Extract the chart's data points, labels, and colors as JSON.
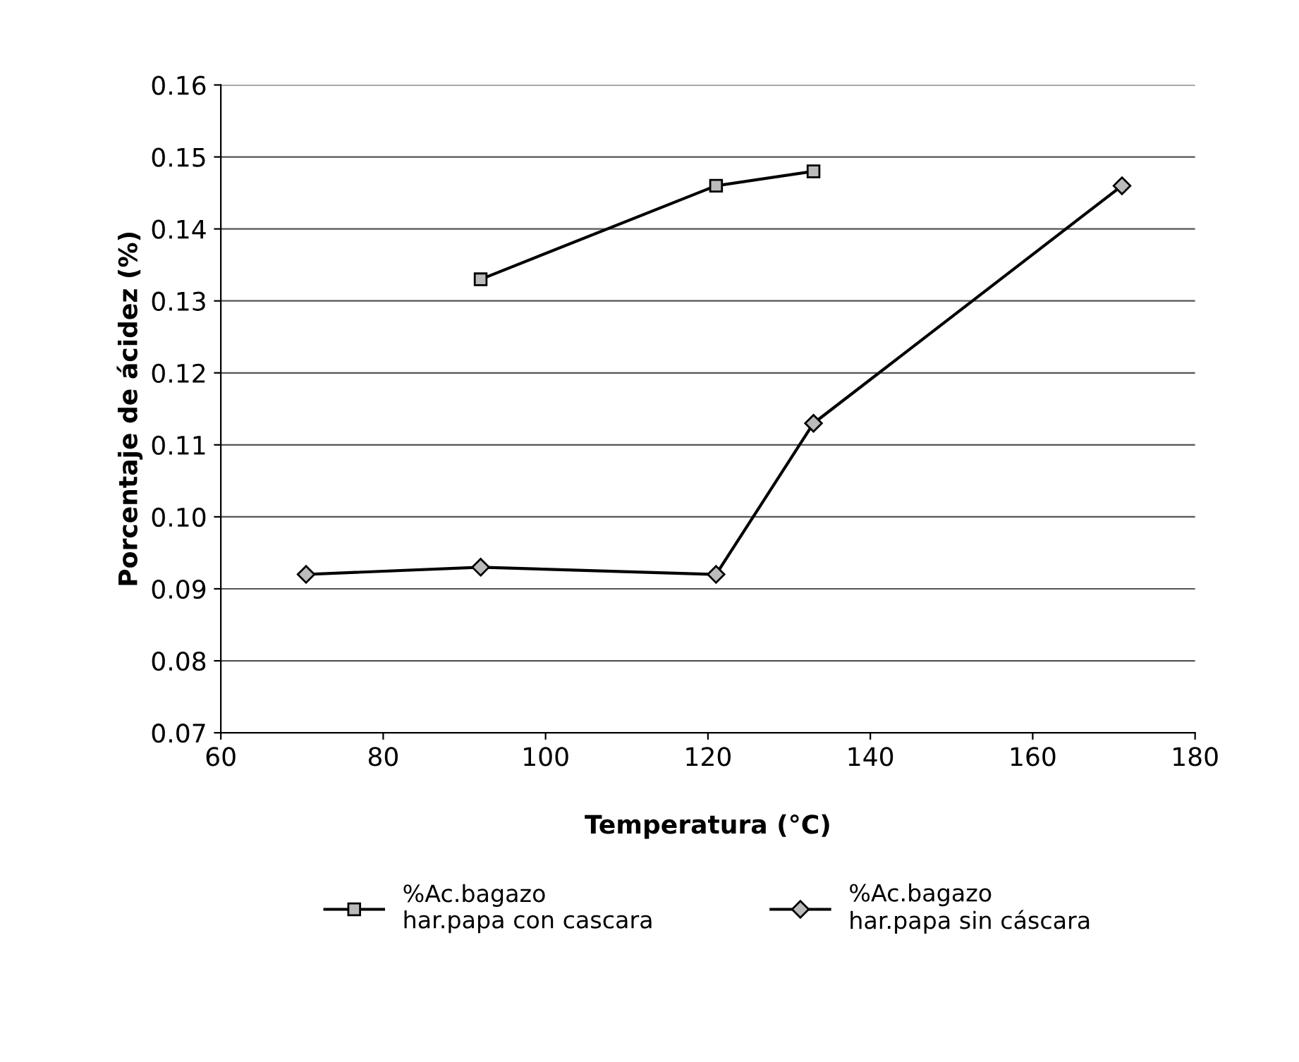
{
  "chart_data": {
    "type": "line",
    "xlabel": "Temperatura (°C)",
    "ylabel": "Porcentaje de ácidez (%)",
    "xlim": [
      60,
      180
    ],
    "xticks": [
      60,
      80,
      100,
      120,
      140,
      160,
      180
    ],
    "ylim": [
      0.07,
      0.16
    ],
    "yticks": [
      {
        "value": 0.07,
        "label": "0.07"
      },
      {
        "value": 0.08,
        "label": "0.08"
      },
      {
        "value": 0.09,
        "label": "0.09"
      },
      {
        "value": 0.1,
        "label": "0.10"
      },
      {
        "value": 0.11,
        "label": "0.11"
      },
      {
        "value": 0.12,
        "label": "0.12"
      },
      {
        "value": 0.13,
        "label": "0.13"
      },
      {
        "value": 0.14,
        "label": "0.14"
      },
      {
        "value": 0.15,
        "label": "0.15"
      },
      {
        "value": 0.16,
        "label": "0.16"
      }
    ],
    "grid": "y",
    "legend": "bottom",
    "series": [
      {
        "name": "%Ac.bagazo\nhar.papa con cascara",
        "color": "#000000",
        "marker": "square",
        "x": [
          92,
          121,
          133
        ],
        "values": [
          0.133,
          0.146,
          0.148
        ]
      },
      {
        "name": "%Ac.bagazo\nhar.papa sin cáscara",
        "color": "#000000",
        "marker": "diamond",
        "x": [
          70.5,
          92,
          121,
          133,
          171
        ],
        "values": [
          0.092,
          0.093,
          0.092,
          0.113,
          0.146
        ]
      }
    ]
  }
}
